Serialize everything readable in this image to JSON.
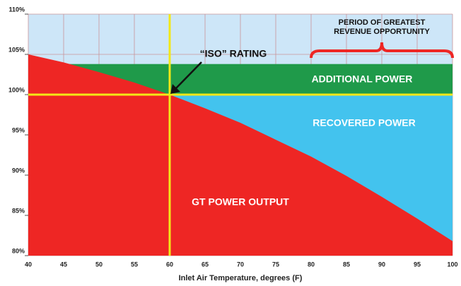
{
  "chart_data": {
    "type": "area",
    "x_label": "Inlet Air Temperature, degrees (F)",
    "x": [
      40,
      45,
      50,
      55,
      60,
      65,
      70,
      75,
      80,
      85,
      90,
      95,
      100
    ],
    "series": [
      {
        "name": "GT POWER OUTPUT",
        "color": "#ee2624",
        "values": [
          105,
          104.0,
          102.8,
          101.5,
          100,
          98.3,
          96.5,
          94.4,
          92.3,
          89.9,
          87.3,
          84.6,
          81.8
        ]
      }
    ],
    "recovered_power": {
      "label": "RECOVERED POWER",
      "color": "#43c3ee"
    },
    "additional_power": {
      "label": "ADDITIONAL POWER",
      "color": "#1f9a4a",
      "top": 103.8
    },
    "iso_rating": {
      "label": "“ISO” RATING",
      "x": 60,
      "y": 100,
      "color": "#f3e817"
    },
    "revenue_period": {
      "lines": [
        "PERIOD OF GREATEST",
        "REVENUE OPPORTUNITY"
      ],
      "x_range": [
        80,
        100
      ],
      "color": "#ee2624"
    },
    "xlim": [
      40,
      100
    ],
    "ylim": [
      80,
      110
    ],
    "xticks": [
      40,
      45,
      50,
      55,
      60,
      65,
      70,
      75,
      80,
      85,
      90,
      95,
      100
    ],
    "yticks": [
      {
        "value": 80,
        "label": "80%"
      },
      {
        "value": 85,
        "label": "85%"
      },
      {
        "value": 90,
        "label": "90%"
      },
      {
        "value": 95,
        "label": "95%"
      },
      {
        "value": 100,
        "label": "100%"
      },
      {
        "value": 105,
        "label": "105%"
      },
      {
        "value": 110,
        "label": "110%"
      }
    ],
    "grid": true
  }
}
